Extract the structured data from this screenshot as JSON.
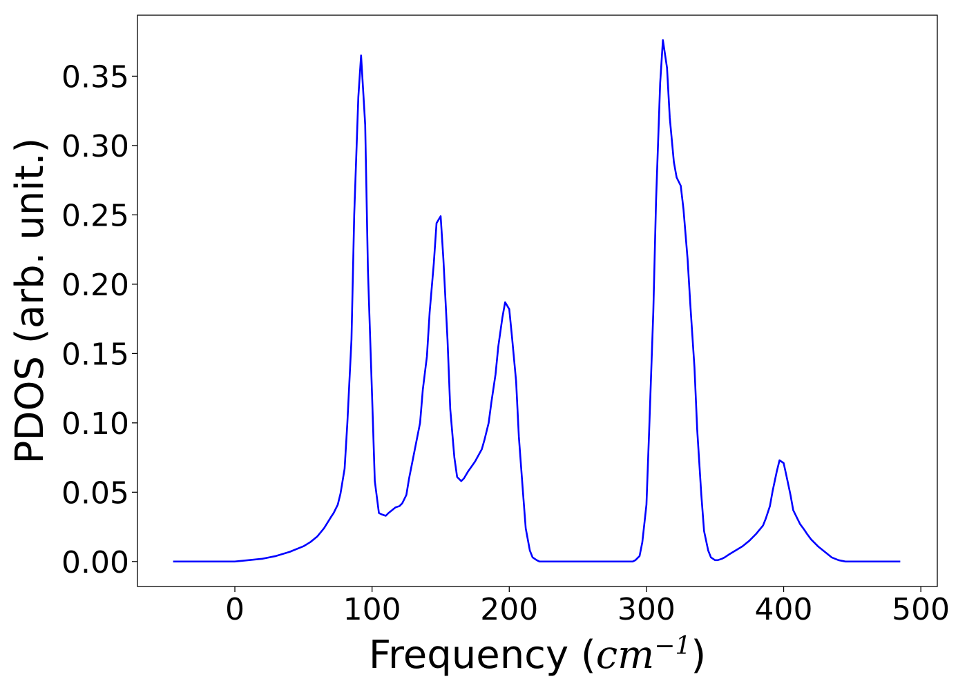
{
  "chart_data": {
    "type": "line",
    "title": "",
    "xlabel": "Frequency",
    "xlabel_unit_open": "(",
    "xlabel_unit_var": "cm",
    "xlabel_unit_sup": "−1",
    "xlabel_unit_close": ")",
    "ylabel": "PDOS (arb. unit.)",
    "xlim": [
      -71,
      512
    ],
    "ylim": [
      -0.018,
      0.394
    ],
    "xticks": [
      0,
      100,
      200,
      300,
      400,
      500
    ],
    "xtick_labels": [
      "0",
      "100",
      "200",
      "300",
      "400",
      "500"
    ],
    "yticks": [
      0.0,
      0.05,
      0.1,
      0.15,
      0.2,
      0.25,
      0.3,
      0.35
    ],
    "ytick_labels": [
      "0.00",
      "0.05",
      "0.10",
      "0.15",
      "0.20",
      "0.25",
      "0.30",
      "0.35"
    ],
    "grid": false,
    "legend": "none",
    "series": [
      {
        "color": "#0000ff",
        "x": [
          -45,
          -20,
          0,
          10,
          20,
          30,
          40,
          50,
          55,
          60,
          65,
          70,
          72,
          75,
          77,
          80,
          82,
          85,
          87,
          90,
          92,
          95,
          97,
          100,
          102,
          105,
          107,
          110,
          112,
          117,
          120,
          122,
          125,
          127,
          130,
          135,
          137,
          140,
          142,
          145,
          147,
          150,
          152,
          155,
          157,
          160,
          162,
          165,
          167,
          170,
          175,
          180,
          182,
          185,
          187,
          190,
          192,
          195,
          197,
          200,
          202,
          205,
          207,
          210,
          212,
          215,
          217,
          220,
          222,
          225,
          230,
          250,
          270,
          290,
          292,
          295,
          297,
          300,
          302,
          305,
          307,
          310,
          312,
          315,
          317,
          320,
          322,
          325,
          327,
          330,
          332,
          335,
          337,
          340,
          342,
          345,
          347,
          350,
          352,
          355,
          357,
          360,
          365,
          370,
          375,
          380,
          385,
          387,
          390,
          392,
          395,
          397,
          400,
          402,
          405,
          407,
          410,
          412,
          415,
          417,
          420,
          425,
          430,
          435,
          440,
          445,
          450,
          470,
          485
        ],
        "y": [
          0.0,
          0.0,
          0.0,
          0.001,
          0.002,
          0.004,
          0.007,
          0.011,
          0.014,
          0.018,
          0.024,
          0.032,
          0.035,
          0.041,
          0.049,
          0.067,
          0.1,
          0.16,
          0.25,
          0.335,
          0.365,
          0.315,
          0.21,
          0.12,
          0.058,
          0.035,
          0.034,
          0.033,
          0.035,
          0.039,
          0.04,
          0.042,
          0.048,
          0.06,
          0.075,
          0.1,
          0.124,
          0.148,
          0.18,
          0.215,
          0.244,
          0.249,
          0.218,
          0.16,
          0.11,
          0.075,
          0.061,
          0.058,
          0.06,
          0.065,
          0.072,
          0.081,
          0.088,
          0.1,
          0.115,
          0.135,
          0.155,
          0.176,
          0.187,
          0.182,
          0.162,
          0.13,
          0.09,
          0.05,
          0.024,
          0.008,
          0.003,
          0.001,
          0.0,
          0.0,
          0.0,
          0.0,
          0.0,
          0.0,
          0.001,
          0.004,
          0.014,
          0.041,
          0.095,
          0.18,
          0.26,
          0.345,
          0.376,
          0.356,
          0.32,
          0.288,
          0.277,
          0.271,
          0.254,
          0.218,
          0.185,
          0.14,
          0.095,
          0.048,
          0.022,
          0.008,
          0.003,
          0.001,
          0.001,
          0.002,
          0.003,
          0.005,
          0.008,
          0.011,
          0.015,
          0.02,
          0.026,
          0.031,
          0.04,
          0.051,
          0.065,
          0.073,
          0.071,
          0.062,
          0.048,
          0.037,
          0.031,
          0.027,
          0.023,
          0.02,
          0.016,
          0.011,
          0.007,
          0.003,
          0.001,
          0.0,
          0.0,
          0.0,
          0.0
        ]
      }
    ]
  }
}
